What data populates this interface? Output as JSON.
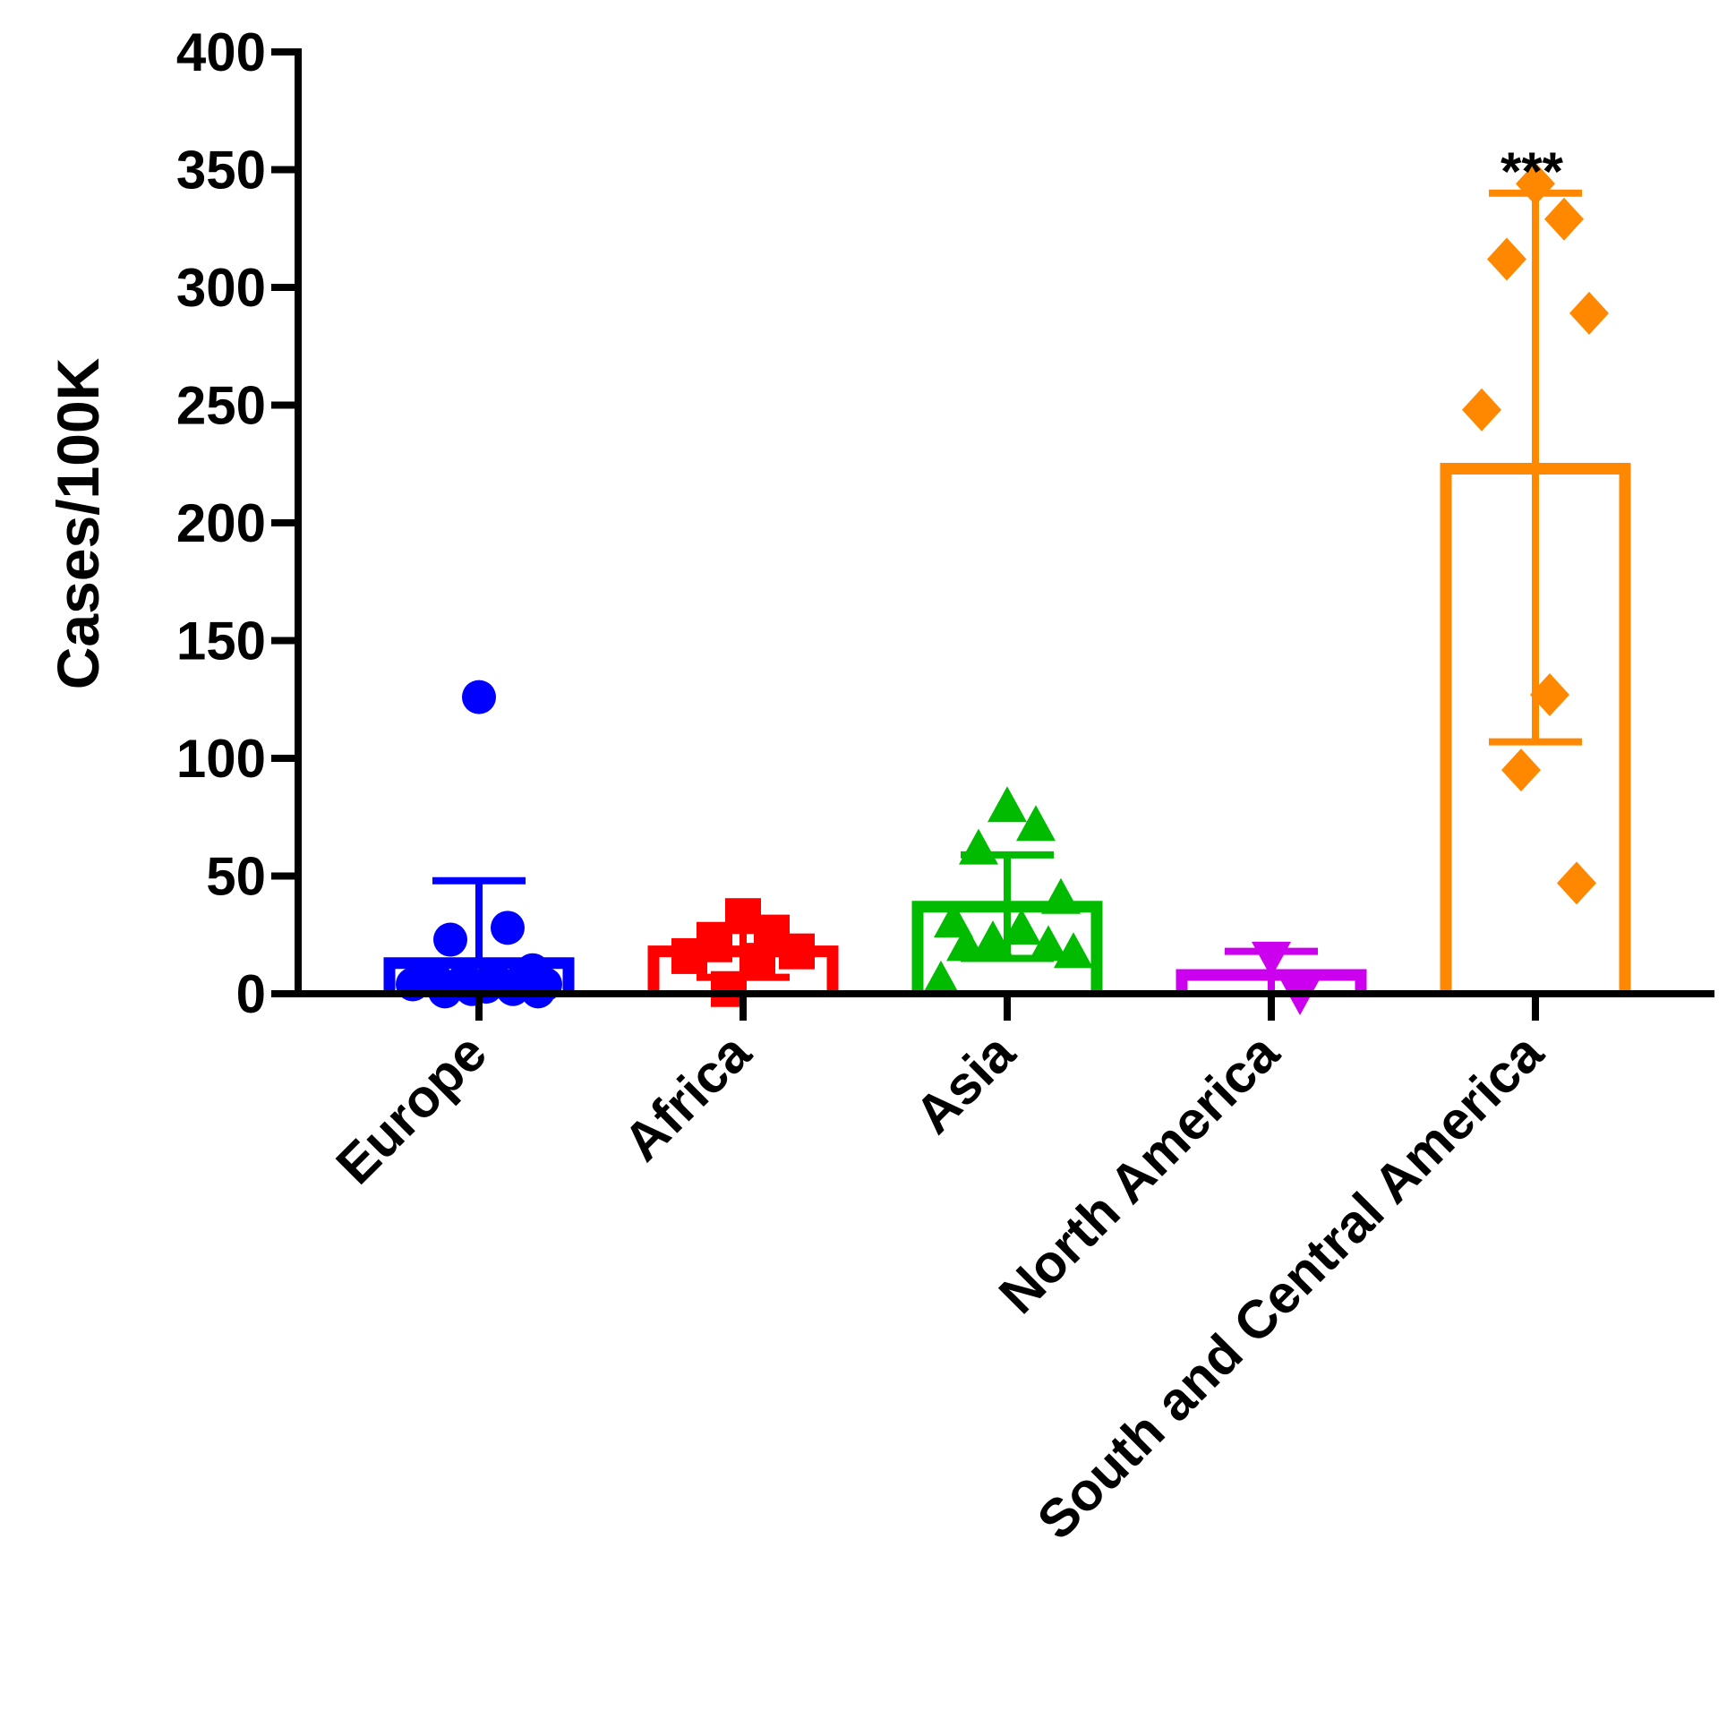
{
  "chart_data": {
    "type": "bar",
    "title": "",
    "xlabel": "",
    "ylabel": "Cases/100K",
    "ylim": [
      0,
      400
    ],
    "yticks": [
      0,
      50,
      100,
      150,
      200,
      250,
      300,
      350,
      400
    ],
    "grid": false,
    "legend": "none",
    "categories": [
      "Europe",
      "Africa",
      "Asia",
      "North America",
      "South and Central America"
    ],
    "series": [
      {
        "name": "Europe",
        "color": "#0000ff",
        "marker": "circle",
        "mean": 13,
        "error_low": 13,
        "error_high": 48,
        "points": [
          126,
          28,
          23,
          10,
          8,
          7,
          6,
          5,
          5,
          4,
          4,
          3,
          2,
          2,
          1,
          1
        ]
      },
      {
        "name": "Africa",
        "color": "#ff0000",
        "marker": "square",
        "mean": 18,
        "error_low": 7,
        "error_high": 29,
        "points": [
          33,
          26,
          21,
          18,
          16,
          14,
          2
        ]
      },
      {
        "name": "Asia",
        "color": "#00bb00",
        "marker": "triangle",
        "mean": 37,
        "error_low": 15,
        "error_high": 59,
        "points": [
          79,
          71,
          61,
          40,
          30,
          27,
          22,
          20,
          20,
          17,
          5
        ]
      },
      {
        "name": "North America",
        "color": "#cc00ee",
        "marker": "triangle-down",
        "mean": 8,
        "error_low": 0,
        "error_high": 18,
        "points": [
          16,
          0
        ]
      },
      {
        "name": "South and Central America",
        "color": "#ff8800",
        "marker": "diamond",
        "mean": 223,
        "error_low": 107,
        "error_high": 340,
        "points": [
          344,
          329,
          312,
          289,
          248,
          127,
          95,
          47
        ],
        "annotation": "***"
      }
    ]
  }
}
